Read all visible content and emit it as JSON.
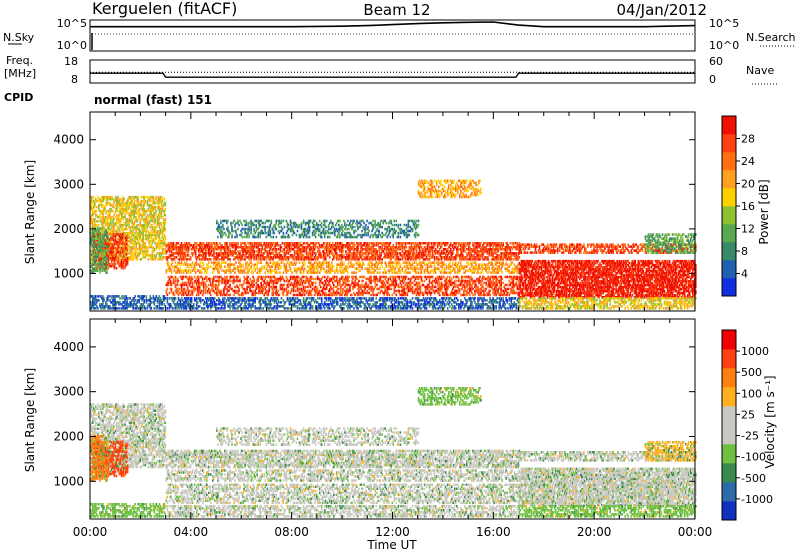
{
  "header": {
    "station": "Kerguelen (fitACF)",
    "beam": "Beam 12",
    "date": "04/Jan/2012"
  },
  "nsky_panel": {
    "left_label": "N.Sky",
    "right_label": "N.Search",
    "left_ticks": [
      "10^5",
      "10^0"
    ],
    "right_ticks": [
      "10^5",
      "10^0"
    ]
  },
  "freq_panel": {
    "left_label_1": "Freq.",
    "left_label_2": "[MHz]",
    "right_label": "Nave",
    "left_ticks": [
      "18",
      "8"
    ],
    "right_ticks": [
      "60",
      "0"
    ]
  },
  "cpid": {
    "label": "CPID",
    "value": "normal (fast) 151"
  },
  "x_axis": {
    "title": "Time UT",
    "ticks": [
      "00:00",
      "04:00",
      "08:00",
      "12:00",
      "16:00",
      "20:00",
      "00:00"
    ]
  },
  "power_panel": {
    "ylabel": "Slant Range [km]",
    "yticks": [
      "4000",
      "3000",
      "2000",
      "1000"
    ],
    "colorbar_label": "Power [dB]",
    "colorbar_ticks": [
      "28",
      "24",
      "20",
      "16",
      "12",
      "8",
      "4"
    ],
    "colors": [
      "#1030e0",
      "#2060b0",
      "#3a8a6a",
      "#58a850",
      "#8ec030",
      "#ffd000",
      "#ffa020",
      "#ff7010",
      "#ff4010",
      "#f01000"
    ]
  },
  "velocity_panel": {
    "ylabel": "Slant Range [km]",
    "yticks": [
      "4000",
      "3000",
      "2000",
      "1000"
    ],
    "colorbar_label": "Velocity [m s⁻¹]",
    "colorbar_ticks": [
      "1000",
      "500",
      "100",
      "25",
      "-25",
      "-100",
      "-500",
      "-1000"
    ],
    "colors": [
      "#1030c0",
      "#2d6aa8",
      "#3a8a50",
      "#70c040",
      "#c8c8c0",
      "#c8c8c0",
      "#ffb020",
      "#ff8010",
      "#ff4010",
      "#f00000"
    ]
  },
  "chart_data": [
    {
      "type": "line",
      "title": "N.Sky / N.Search",
      "x": [
        0,
        2,
        4,
        6,
        8,
        10,
        11,
        12,
        13,
        14,
        15,
        16,
        17,
        18,
        20,
        22,
        24
      ],
      "series": [
        {
          "name": "N.Sky",
          "values": [
            4.1,
            4.1,
            4.1,
            4.1,
            4.1,
            4.2,
            4.3,
            4.5,
            4.7,
            4.85,
            4.95,
            5.0,
            4.4,
            4.1,
            4.1,
            4.1,
            4.3
          ]
        }
      ],
      "ylim": [
        0,
        5
      ]
    },
    {
      "type": "line",
      "title": "Freq / Nave",
      "x": [
        0,
        2.9,
        3.0,
        16.9,
        17.0,
        24
      ],
      "series": [
        {
          "name": "Freq",
          "values": [
            12.2,
            12.2,
            10.3,
            10.3,
            12.2,
            12.2
          ]
        }
      ],
      "ylim": [
        8,
        18
      ]
    },
    {
      "type": "heatmap",
      "title": "Power [dB]",
      "xlabel": "Time UT",
      "ylabel": "Slant Range [km]",
      "xlim": [
        0,
        24
      ],
      "ylim": [
        180,
        4600
      ],
      "color_range": [
        0,
        30
      ]
    },
    {
      "type": "heatmap",
      "title": "Velocity",
      "xlabel": "Time UT",
      "ylabel": "Slant Range [km]",
      "xlim": [
        0,
        24
      ],
      "ylim": [
        180,
        4600
      ],
      "color_range": [
        -1000,
        1000
      ]
    }
  ]
}
